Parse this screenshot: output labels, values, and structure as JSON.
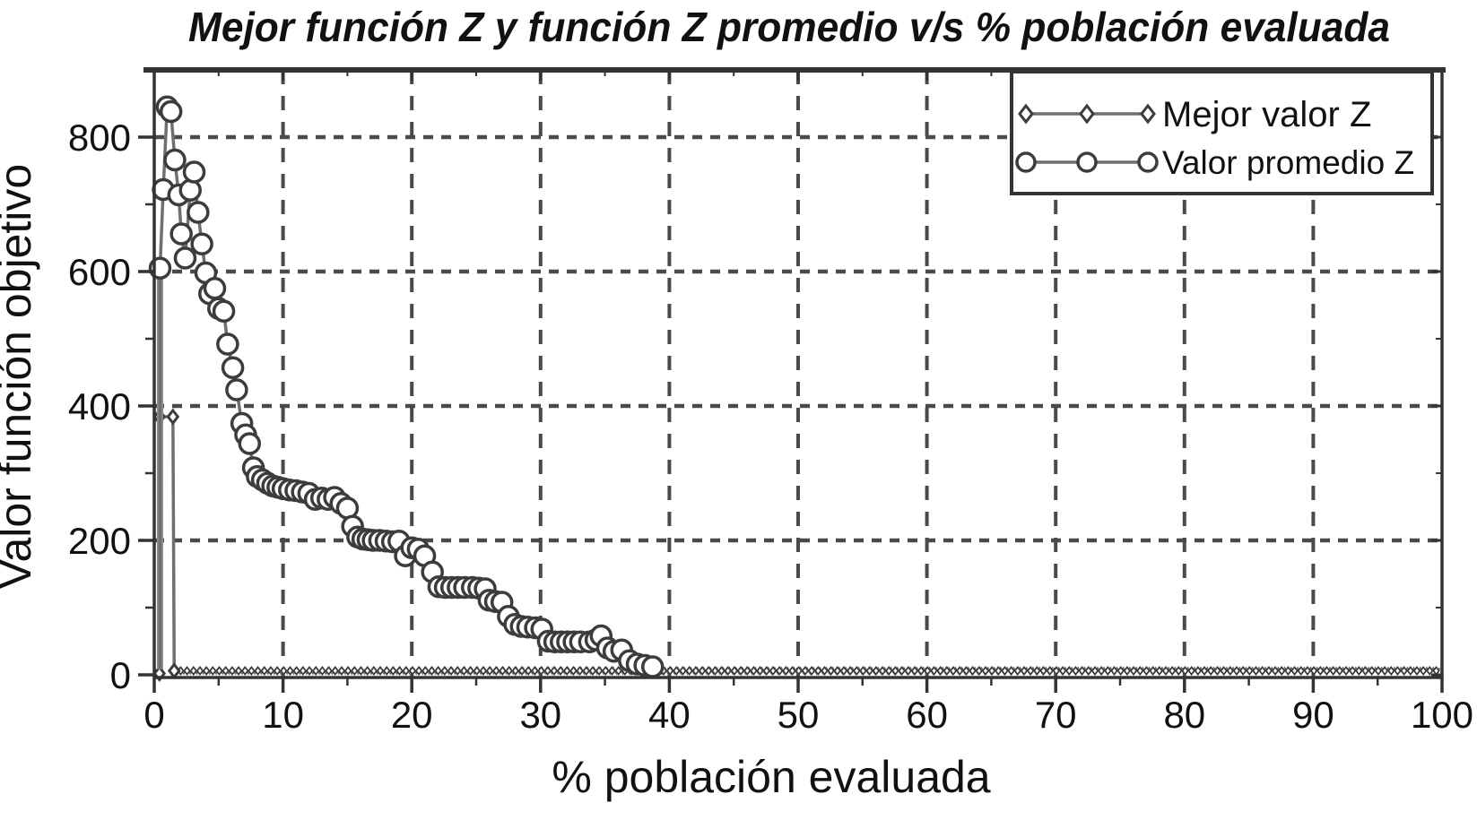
{
  "title": "Mejor función Z y función Z promedio v/s % población evaluada",
  "x_axis": {
    "label": "% población evaluada",
    "min": 0,
    "max": 100,
    "major_ticks": [
      0,
      10,
      20,
      30,
      40,
      50,
      60,
      70,
      80,
      90,
      100
    ],
    "minor_step": 5
  },
  "y_axis": {
    "label": "Valor función objetivo",
    "min": 0,
    "max": 900,
    "major_ticks": [
      0,
      200,
      400,
      600,
      800
    ],
    "minor_step": 100
  },
  "legend": {
    "position": "top-right",
    "items": [
      {
        "label": "Mejor valor Z",
        "marker": "diamond"
      },
      {
        "label": "Valor promedio Z",
        "marker": "circle"
      }
    ]
  },
  "colors": {
    "background": "#ffffff",
    "text": "#111111",
    "axis": "#333333",
    "grid": "#4a4a4a",
    "series_line": "#6f6f6f",
    "marker_stroke": "#3c3c3c",
    "marker_fill": "#ffffff"
  },
  "chart_data": {
    "type": "line",
    "title": "Mejor función Z y función Z promedio v/s % población evaluada",
    "xlabel": "% población evaluada",
    "ylabel": "Valor función objetivo",
    "xlim": [
      0,
      100
    ],
    "ylim": [
      0,
      900
    ],
    "grid": "dashed",
    "legend_position": "top-right",
    "series": [
      {
        "name": "Mejor valor Z",
        "marker": "diamond",
        "marker_size": 7,
        "points": [
          [
            0.4,
            2
          ],
          [
            0.4,
            384
          ],
          [
            1.45,
            384
          ],
          [
            1.55,
            6
          ]
        ],
        "flat_tail": {
          "from_x": 1.55,
          "to_x": 100,
          "value": 6,
          "marker_step_x": 0.5,
          "marker_size": 4
        }
      },
      {
        "name": "Valor promedio Z",
        "marker": "circle",
        "marker_size": 11,
        "points": [
          [
            0.45,
            8,
            0
          ],
          [
            0.45,
            605
          ],
          [
            0.7,
            722
          ],
          [
            1.0,
            845
          ],
          [
            1.3,
            838
          ],
          [
            1.6,
            766
          ],
          [
            1.9,
            714
          ],
          [
            2.1,
            656
          ],
          [
            2.4,
            620
          ],
          [
            2.8,
            721
          ],
          [
            3.1,
            748
          ],
          [
            3.4,
            688
          ],
          [
            3.7,
            641
          ],
          [
            4.0,
            598
          ],
          [
            4.3,
            567
          ],
          [
            4.7,
            575
          ],
          [
            5.0,
            545
          ],
          [
            5.4,
            541
          ],
          [
            5.7,
            492
          ],
          [
            6.1,
            457
          ],
          [
            6.4,
            424
          ],
          [
            6.8,
            374
          ],
          [
            7.1,
            357
          ],
          [
            7.4,
            344
          ],
          [
            7.7,
            308
          ],
          [
            8.0,
            295
          ],
          [
            8.4,
            290
          ],
          [
            8.8,
            285
          ],
          [
            9.2,
            281
          ],
          [
            9.6,
            279
          ],
          [
            10.0,
            277
          ],
          [
            10.5,
            275
          ],
          [
            11.0,
            274
          ],
          [
            11.5,
            272
          ],
          [
            12.0,
            270
          ],
          [
            12.5,
            261
          ],
          [
            13.0,
            263
          ],
          [
            13.5,
            261
          ],
          [
            14.0,
            264
          ],
          [
            14.5,
            255
          ],
          [
            15.0,
            248
          ],
          [
            15.4,
            221
          ],
          [
            15.8,
            205
          ],
          [
            16.2,
            202
          ],
          [
            16.6,
            201
          ],
          [
            17.0,
            200
          ],
          [
            17.5,
            200
          ],
          [
            18.0,
            199
          ],
          [
            18.5,
            198
          ],
          [
            19.0,
            199
          ],
          [
            19.5,
            177
          ],
          [
            20.0,
            189
          ],
          [
            20.5,
            187
          ],
          [
            21.0,
            177
          ],
          [
            21.6,
            153
          ],
          [
            22.1,
            131
          ],
          [
            22.6,
            130
          ],
          [
            23.1,
            130
          ],
          [
            23.6,
            130
          ],
          [
            24.1,
            130
          ],
          [
            24.7,
            130
          ],
          [
            25.2,
            129
          ],
          [
            25.7,
            128
          ],
          [
            26.0,
            111
          ],
          [
            26.5,
            109
          ],
          [
            27.0,
            108
          ],
          [
            27.5,
            87
          ],
          [
            28.0,
            75
          ],
          [
            28.5,
            72
          ],
          [
            29.0,
            71
          ],
          [
            29.6,
            70
          ],
          [
            30.1,
            68
          ],
          [
            30.6,
            50
          ],
          [
            31.1,
            49
          ],
          [
            31.6,
            49
          ],
          [
            32.1,
            49
          ],
          [
            32.6,
            49
          ],
          [
            33.1,
            49
          ],
          [
            33.8,
            49
          ],
          [
            34.3,
            52
          ],
          [
            34.7,
            58
          ],
          [
            35.2,
            40
          ],
          [
            35.7,
            35
          ],
          [
            36.3,
            37
          ],
          [
            36.9,
            21
          ],
          [
            37.5,
            16
          ],
          [
            38.1,
            14
          ],
          [
            38.7,
            12
          ]
        ]
      }
    ]
  }
}
